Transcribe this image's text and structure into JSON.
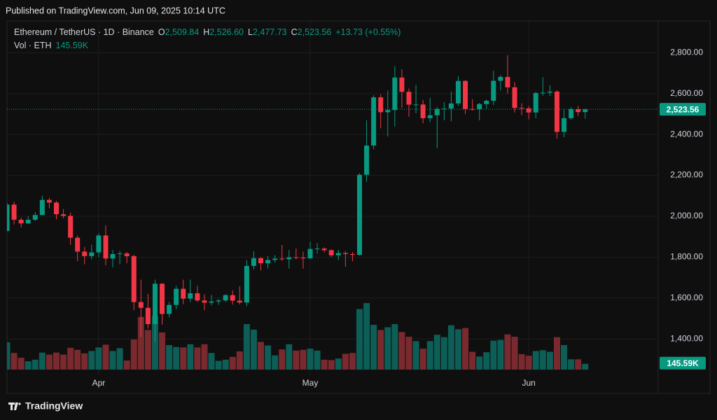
{
  "header": {
    "published": "Published on TradingView.com, Jun 09, 2025 10:14 UTC",
    "brand": "TradingView"
  },
  "chart_data": {
    "type": "candlestick",
    "legend": {
      "symbol": "Ethereum / TetherUS · 1D · Binance",
      "items": [
        {
          "key": "O",
          "text": "2,509.84"
        },
        {
          "key": "H",
          "text": "2,526.60"
        },
        {
          "key": "L",
          "text": "2,477.73"
        },
        {
          "key": "C",
          "text": "2,523.56"
        }
      ],
      "change": "+13.73 (+0.55%)",
      "volume_title": "Vol · ETH",
      "volume_text": "145.59K"
    },
    "last_price_label": "2,523.56",
    "up_color": "#089981",
    "down_color": "#f23645",
    "up_volume_color": "#0c5e56",
    "down_volume_color": "#7a2a2e",
    "ylim": [
      1140,
      2935
    ],
    "yticks": [
      {
        "value": 1400,
        "label": "1,400.00"
      },
      {
        "value": 1600,
        "label": "1,600.00"
      },
      {
        "value": 1800,
        "label": "1,800.00"
      },
      {
        "value": 2000,
        "label": "2,000.00"
      },
      {
        "value": 2200,
        "label": "2,200.00"
      },
      {
        "value": 2400,
        "label": "2,400.00"
      },
      {
        "value": 2600,
        "label": "2,600.00"
      },
      {
        "value": 2800,
        "label": "2,800.00"
      }
    ],
    "grid": true,
    "categories": [
      null,
      null,
      null,
      null,
      null,
      null,
      null,
      null,
      null,
      null,
      null,
      null,
      null,
      "Apr",
      null,
      null,
      null,
      null,
      null,
      null,
      null,
      null,
      null,
      null,
      null,
      null,
      null,
      null,
      null,
      null,
      null,
      null,
      null,
      null,
      null,
      null,
      null,
      null,
      null,
      null,
      null,
      null,
      null,
      "May",
      null,
      null,
      null,
      null,
      null,
      null,
      null,
      null,
      null,
      null,
      null,
      null,
      null,
      null,
      null,
      null,
      null,
      null,
      null,
      null,
      null,
      null,
      null,
      null,
      null,
      null,
      null,
      null,
      null,
      null,
      "Jun",
      null,
      null,
      null,
      null,
      null,
      null,
      null,
      null
    ],
    "open": [
      1928,
      2057,
      1983,
      1965,
      1983,
      2006,
      2080,
      2067,
      2010,
      2002,
      1895,
      1827,
      1805,
      1823,
      1906,
      1793,
      1815,
      1818,
      1805,
      1580,
      1552,
      1472,
      1670,
      1522,
      1566,
      1645,
      1597,
      1623,
      1588,
      1577,
      1583,
      1588,
      1614,
      1587,
      1578,
      1757,
      1795,
      1770,
      1786,
      1793,
      1790,
      1799,
      1798,
      1794,
      1840,
      1842,
      1834,
      1809,
      1820,
      1815,
      1811,
      2203,
      2346,
      2582,
      2509,
      2520,
      2679,
      2609,
      2546,
      2547,
      2480,
      2494,
      2525,
      2527,
      2552,
      2662,
      2525,
      2524,
      2549,
      2565,
      2663,
      2682,
      2631,
      2530,
      2528,
      2508,
      2603,
      2605,
      2610,
      2413,
      2480,
      2524,
      2509.84
    ],
    "high": [
      2068,
      2070,
      1993,
      2000,
      2020,
      2100,
      2090,
      2075,
      2035,
      2018,
      1906,
      1850,
      1860,
      1917,
      1955,
      1835,
      1830,
      1825,
      1812,
      1690,
      1620,
      1690,
      1672,
      1580,
      1660,
      1690,
      1690,
      1660,
      1618,
      1615,
      1595,
      1619,
      1637,
      1658,
      1785,
      1829,
      1800,
      1805,
      1809,
      1860,
      1835,
      1842,
      1827,
      1875,
      1869,
      1848,
      1838,
      1836,
      1830,
      1825,
      2210,
      2470,
      2592,
      2597,
      2615,
      2735,
      2720,
      2625,
      2643,
      2570,
      2580,
      2535,
      2558,
      2610,
      2685,
      2667,
      2573,
      2555,
      2571,
      2712,
      2690,
      2788,
      2657,
      2553,
      2540,
      2610,
      2680,
      2640,
      2617,
      2525,
      2534,
      2540,
      2526.6
    ],
    "low": [
      1925,
      1960,
      1945,
      1963,
      1977,
      2005,
      2040,
      1985,
      1990,
      1860,
      1780,
      1765,
      1790,
      1800,
      1760,
      1750,
      1765,
      1770,
      1540,
      1410,
      1450,
      1385,
      1470,
      1505,
      1545,
      1570,
      1580,
      1580,
      1540,
      1565,
      1567,
      1580,
      1568,
      1569,
      1560,
      1739,
      1735,
      1745,
      1773,
      1782,
      1744,
      1789,
      1744,
      1791,
      1817,
      1823,
      1800,
      1785,
      1753,
      1780,
      1808,
      2168,
      2328,
      2430,
      2390,
      2440,
      2530,
      2487,
      2504,
      2455,
      2460,
      2333,
      2470,
      2465,
      2541,
      2500,
      2517,
      2470,
      2527,
      2544,
      2616,
      2600,
      2508,
      2495,
      2475,
      2480,
      2590,
      2588,
      2380,
      2387,
      2472,
      2491,
      2477.73
    ],
    "close": [
      2057,
      1983,
      1965,
      1983,
      2006,
      2080,
      2067,
      2010,
      2002,
      1895,
      1827,
      1805,
      1823,
      1906,
      1793,
      1815,
      1818,
      1805,
      1580,
      1552,
      1472,
      1670,
      1522,
      1566,
      1645,
      1597,
      1623,
      1588,
      1577,
      1583,
      1588,
      1614,
      1587,
      1578,
      1757,
      1795,
      1770,
      1786,
      1793,
      1790,
      1799,
      1798,
      1794,
      1840,
      1842,
      1834,
      1809,
      1820,
      1815,
      1811,
      2203,
      2346,
      2582,
      2509,
      2520,
      2679,
      2609,
      2546,
      2547,
      2480,
      2494,
      2525,
      2527,
      2552,
      2662,
      2525,
      2524,
      2549,
      2565,
      2663,
      2682,
      2631,
      2530,
      2528,
      2508,
      2603,
      2605,
      2610,
      2413,
      2480,
      2524,
      2509.84,
      2523.56
    ],
    "volume": [
      690,
      420,
      300,
      210,
      250,
      430,
      380,
      430,
      380,
      550,
      500,
      410,
      470,
      560,
      630,
      470,
      540,
      230,
      760,
      1330,
      1000,
      1350,
      940,
      620,
      570,
      560,
      640,
      560,
      640,
      420,
      220,
      250,
      320,
      460,
      1150,
      1010,
      700,
      610,
      360,
      510,
      640,
      480,
      500,
      530,
      480,
      250,
      240,
      280,
      400,
      420,
      1530,
      1680,
      1130,
      1000,
      1070,
      1150,
      950,
      830,
      720,
      530,
      720,
      880,
      820,
      1120,
      1020,
      1050,
      450,
      330,
      440,
      730,
      750,
      890,
      830,
      390,
      350,
      470,
      490,
      450,
      820,
      620,
      260,
      260,
      145.59
    ]
  }
}
